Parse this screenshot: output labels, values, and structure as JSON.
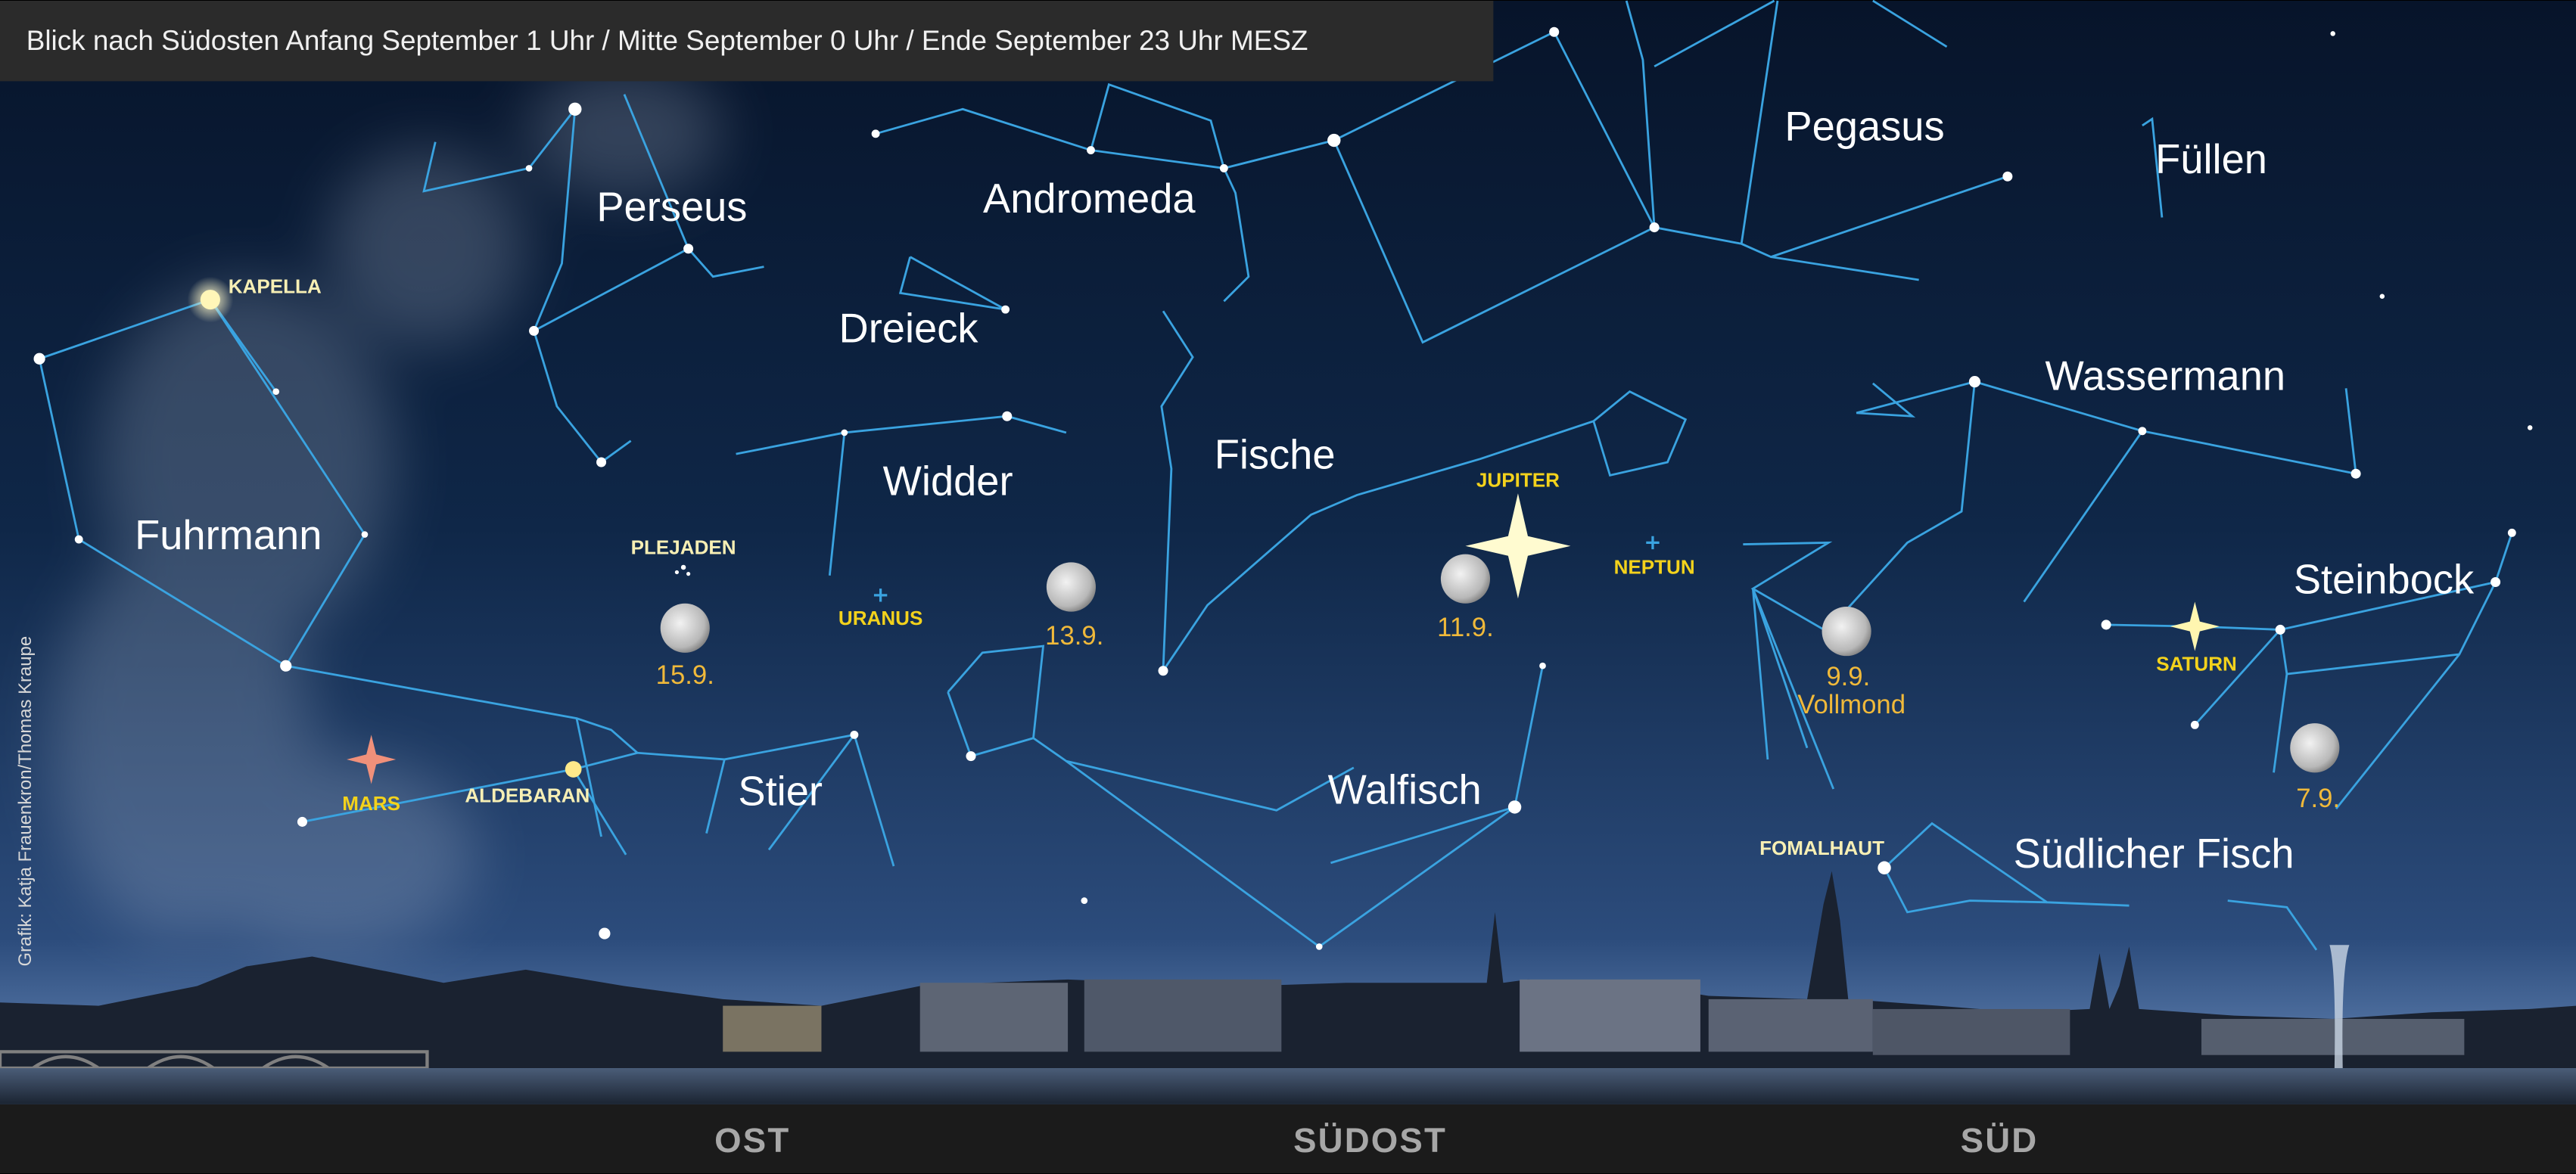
{
  "header": {
    "title": "Blick nach Südosten Anfang September 1 Uhr / Mitte September 0 Uhr / Ende September 23 Uhr  MESZ"
  },
  "constellations": [
    "Pegasus",
    "Füllen",
    "Perseus",
    "Andromeda",
    "Dreieck",
    "Wassermann",
    "Fische",
    "Widder",
    "Fuhrmann",
    "Steinbock",
    "Stier",
    "Walfisch",
    "Südlicher Fisch"
  ],
  "stars": [
    "KAPELLA",
    "ALDEBARAN",
    "FOMALHAUT",
    "PLEJADEN"
  ],
  "planets": [
    "JUPITER",
    "NEPTUN",
    "URANUS",
    "MARS",
    "SATURN"
  ],
  "moons": [
    "15.9.",
    "13.9.",
    "11.9.",
    "9.9.",
    "Vollmond",
    "7.9."
  ],
  "directions": [
    "OST",
    "SÜDOST",
    "SÜD"
  ],
  "credit": "Grafik: Katja Frauenkron/Thomas Kraupe"
}
